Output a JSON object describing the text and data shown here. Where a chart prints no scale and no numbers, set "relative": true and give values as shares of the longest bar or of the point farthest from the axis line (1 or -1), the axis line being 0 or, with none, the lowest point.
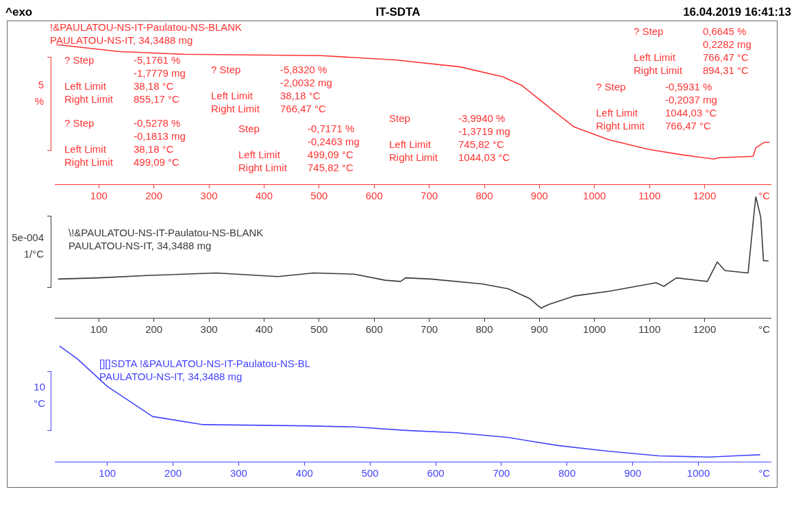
{
  "chart_data": [
    {
      "type": "line",
      "title": "IT-SDTA",
      "ylabel": "5\n%",
      "xlabel": "°C",
      "relative": true,
      "annotations": [
        "^exo",
        "16.04.2019 16:41:13",
        "? Step\t-5,1761 %\n\t-1,7779 mg\nLeft Limit\t38,18 °C\nRight Limit\t855,17 °C",
        "? Step\t-0,5278 %\n\t-0,1813 mg\nLeft Limit\t38,18 °C\nRight Limit\t499,09 °C",
        "? Step\t-5,8320 %\n\t-2,0032 mg\nLeft Limit\t38,18 °C\nRight Limit\t766,47 °C",
        "Step\t-0,7171 %\n\t-0,2463 mg\nLeft Limit\t499,09 °C\nRight Limit\t745,82 °C",
        "Step\t-3,9940 %\n\t-1,3719 mg\nLeft Limit\t745,82 °C\nRight Limit\t1044,03 °C",
        "? Step\t-0,5931 %\n\t-0,2037 mg\nLeft Limit\t1044,03 °C\nRight Limit\t766,47 °C",
        "? Step\t0,6645 %\n\t0,2282 mg\nLeft Limit\t766,47 °C\nRight Limit\t894,31 °C"
      ],
      "x": [
        22,
        136,
        256,
        505,
        639,
        756,
        833,
        867,
        896,
        924,
        963,
        1025,
        1098,
        1160,
        1217,
        1226,
        1288,
        1293,
        1308,
        1318
      ],
      "series": [
        {
          "name": "!&PAULATOU-NS-IT-Paulatou-NS-BLANK\nPAULATOU-NS-IT, 34,3488 mg",
          "color": "#ff3333",
          "values": [
            1,
            0.95,
            0.93,
            0.92,
            0.89,
            0.84,
            0.77,
            0.71,
            0.62,
            0.53,
            0.41,
            0.32,
            0.25,
            0.21,
            0.18,
            0.19,
            0.2,
            0.26,
            0.3,
            0.3
          ]
        }
      ],
      "xlim": [
        20,
        1320
      ],
      "xticks": [
        100,
        200,
        300,
        400,
        500,
        600,
        700,
        800,
        900,
        1000,
        1100,
        1200
      ]
    },
    {
      "type": "line",
      "ylabel": "5e-004\n1/°C",
      "xlabel": "°C",
      "relative": true,
      "x": [
        26,
        100,
        193,
        313,
        425,
        490,
        564,
        620,
        648,
        657,
        703,
        796,
        843,
        882,
        903,
        917,
        963,
        1028,
        1112,
        1126,
        1149,
        1205,
        1223,
        1237,
        1279,
        1288,
        1293,
        1302,
        1307,
        1316
      ],
      "series": [
        {
          "name": "\\!&PAULATOU-NS-IT-Paulatou-NS-BLANK\nPAULATOU-NS-IT, 34,3488 mg",
          "color": "#3a3a3a",
          "values": [
            0.32,
            0.33,
            0.35,
            0.37,
            0.34,
            0.37,
            0.36,
            0.31,
            0.3,
            0.33,
            0.32,
            0.28,
            0.24,
            0.16,
            0.08,
            0.11,
            0.18,
            0.22,
            0.29,
            0.26,
            0.33,
            0.3,
            0.46,
            0.39,
            0.37,
            0.78,
            1,
            0.83,
            0.47,
            0.47
          ]
        }
      ],
      "xlim": [
        20,
        1320
      ],
      "xticks": [
        100,
        200,
        300,
        400,
        500,
        600,
        700,
        800,
        900,
        1000,
        1100,
        1200
      ]
    },
    {
      "type": "line",
      "ylabel": "10\n°C",
      "xlabel": "°C",
      "relative": true,
      "x": [
        27,
        54,
        100,
        169,
        246,
        400,
        477,
        555,
        632,
        709,
        786,
        863,
        940,
        1017,
        1055,
        1094
      ],
      "series": [
        {
          "name": "[][]SDTA !&PAULATOU-NS-IT-Paulatou-NS-BL\nPAULATOU-NS-IT, 34,3488 mg",
          "color": "#4343ff",
          "values": [
            1,
            0.89,
            0.65,
            0.39,
            0.32,
            0.31,
            0.3,
            0.27,
            0.25,
            0.21,
            0.14,
            0.09,
            0.05,
            0.04,
            0.05,
            0.06
          ]
        }
      ],
      "xlim": [
        20,
        1110
      ],
      "xticks": [
        100,
        200,
        300,
        400,
        500,
        600,
        700,
        800,
        900,
        1000
      ]
    }
  ]
}
